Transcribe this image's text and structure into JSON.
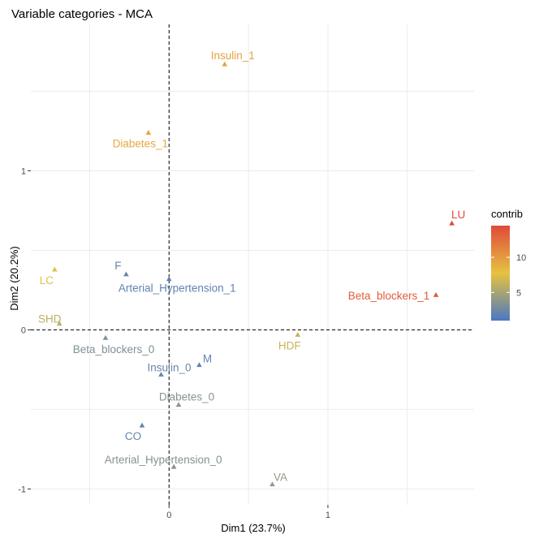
{
  "chart_data": {
    "type": "scatter",
    "title": "Variable categories - MCA",
    "xlabel": "Dim1 (23.7%)",
    "ylabel": "Dim2 (20.2%)",
    "xlim": [
      -0.87,
      1.92
    ],
    "ylim": [
      -1.1,
      1.92
    ],
    "x_ticks": [
      0,
      1
    ],
    "y_ticks": [
      -1,
      0,
      1
    ],
    "x_gridlines": [
      -0.5,
      0,
      0.5,
      1,
      1.5
    ],
    "y_gridlines": [
      -1,
      -0.5,
      0,
      0.5,
      1,
      1.5
    ],
    "grid": true,
    "reference_lines": {
      "x": 0,
      "y": 0,
      "style": "dashed"
    },
    "legend": {
      "title": "contrib",
      "placement": "right",
      "ticks": [
        5,
        10
      ],
      "range": [
        1,
        14.5
      ],
      "colors": [
        "#4a78c2",
        "#e6c240",
        "#e04a3a"
      ]
    },
    "points": [
      {
        "label": "Insulin_1",
        "x": 0.35,
        "y": 1.67,
        "contrib": 9.5
      },
      {
        "label": "Diabetes_1",
        "x": -0.13,
        "y": 1.24,
        "contrib": 9.2
      },
      {
        "label": "LU",
        "x": 1.78,
        "y": 0.67,
        "contrib": 14.5
      },
      {
        "label": "Beta_blockers_1",
        "x": 1.68,
        "y": 0.22,
        "contrib": 13.5
      },
      {
        "label": "LC",
        "x": -0.72,
        "y": 0.38,
        "contrib": 7.5
      },
      {
        "label": "SHD",
        "x": -0.69,
        "y": 0.04,
        "contrib": 6.0
      },
      {
        "label": "F",
        "x": -0.27,
        "y": 0.35,
        "contrib": 2.2
      },
      {
        "label": "Arterial_Hypertension_1",
        "x": 0.0,
        "y": 0.32,
        "contrib": 2.0
      },
      {
        "label": "HDF",
        "x": 0.81,
        "y": -0.03,
        "contrib": 6.5
      },
      {
        "label": "Beta_blockers_0",
        "x": -0.4,
        "y": -0.05,
        "contrib": 3.2
      },
      {
        "label": "M",
        "x": 0.19,
        "y": -0.22,
        "contrib": 2.0
      },
      {
        "label": "Insulin_0",
        "x": -0.05,
        "y": -0.28,
        "contrib": 2.3
      },
      {
        "label": "Diabetes_0",
        "x": 0.06,
        "y": -0.47,
        "contrib": 3.6
      },
      {
        "label": "CO",
        "x": -0.17,
        "y": -0.6,
        "contrib": 2.2
      },
      {
        "label": "Arterial_Hypertension_0",
        "x": 0.03,
        "y": -0.86,
        "contrib": 3.5
      },
      {
        "label": "VA",
        "x": 0.65,
        "y": -0.97,
        "contrib": 4.2
      }
    ]
  }
}
